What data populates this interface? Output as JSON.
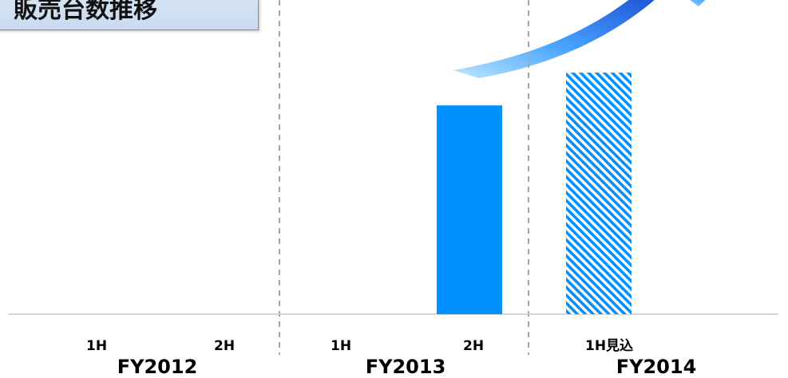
{
  "title": "販売台数推移",
  "colors": {
    "bar": "#0090ff",
    "arrow_light": "#8fd0ff",
    "arrow_dark": "#1f54d6",
    "divider": "#a6a6a6",
    "baseline": "#c8c8c8"
  },
  "chart_data": {
    "type": "bar",
    "title": "販売台数推移",
    "xlabel": "",
    "ylabel": "",
    "grid": false,
    "y_axis_labels": "none",
    "groups": [
      {
        "label": "FY2012",
        "periods": [
          "1H",
          "2H"
        ]
      },
      {
        "label": "FY2013",
        "periods": [
          "1H",
          "2H"
        ]
      },
      {
        "label": "FY2014",
        "periods": [
          "1H見込"
        ]
      }
    ],
    "categories": [
      "FY2012 1H",
      "FY2012 2H",
      "FY2013 1H",
      "FY2013 2H",
      "FY2014 1H見込"
    ],
    "values": [
      0,
      0,
      0,
      70,
      81
    ],
    "patterns": [
      "solid",
      "solid",
      "solid",
      "solid",
      "hatched"
    ],
    "ylim": [
      0,
      100
    ],
    "annotations": [
      {
        "type": "growth-arrow"
      }
    ]
  }
}
